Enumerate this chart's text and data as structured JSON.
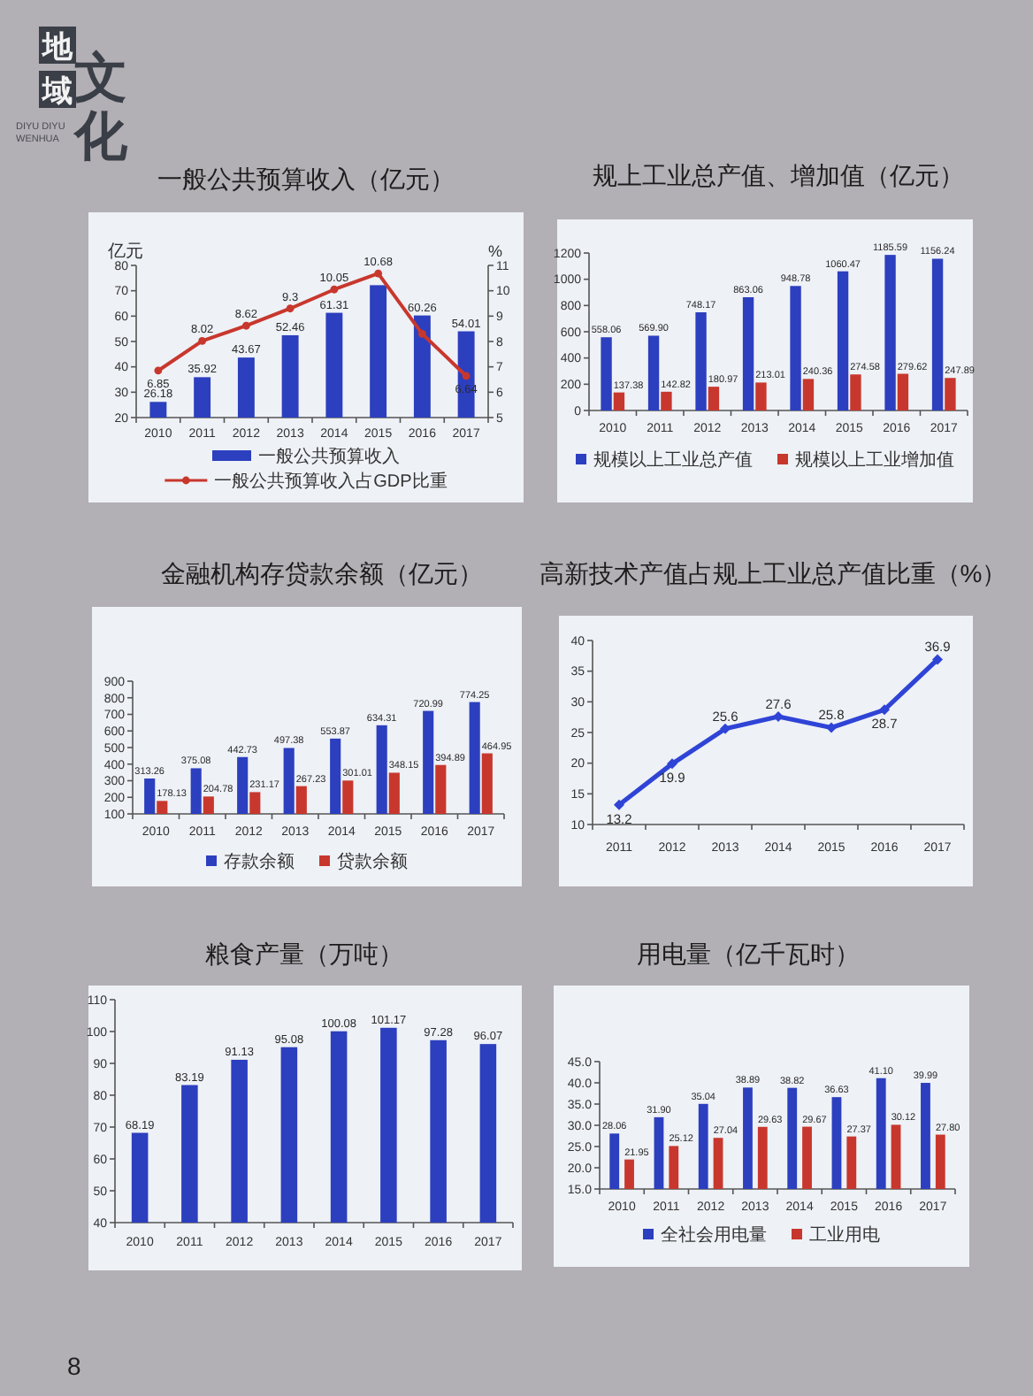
{
  "chart_data": [
    {
      "type": "other",
      "annotations": [
        "地域",
        "文化",
        "DIYU DIYU WENHUA",
        "8"
      ]
    },
    {
      "type": "bar",
      "title": "一般公共预算收入（亿元）",
      "ylabel": "亿元",
      "y2label": "%",
      "categories": [
        "2010",
        "2011",
        "2012",
        "2013",
        "2014",
        "2015",
        "2016",
        "2017"
      ],
      "series": [
        {
          "name": "一般公共预算收入",
          "color": "#2c3fbf",
          "values": [
            26.18,
            35.92,
            43.67,
            52.46,
            61.31,
            72.2,
            60.26,
            54.01
          ],
          "value_labels": [
            "26.18",
            "35.92",
            "43.67",
            "52.46",
            "61.31",
            null,
            "60.26",
            "54.01"
          ]
        },
        {
          "name": "一般公共预算收入占GDP比重",
          "type": "line",
          "axis": "y2",
          "color": "#c8372d",
          "values": [
            6.85,
            8.02,
            8.62,
            9.3,
            10.05,
            10.68,
            8.3,
            6.64
          ],
          "value_labels": [
            "6.85",
            "8.02",
            "8.62",
            "9.3",
            "10.05",
            "10.68",
            null,
            "6.64"
          ]
        }
      ],
      "ylim": [
        20,
        80
      ],
      "yticks": [
        20,
        30,
        40,
        50,
        60,
        70,
        80
      ],
      "y2lim": [
        5,
        11
      ],
      "y2ticks": [
        5,
        6,
        7,
        8,
        9,
        10,
        11
      ],
      "marker": "circle",
      "line_style": "solid",
      "legend": "bottom"
    },
    {
      "type": "bar",
      "title": "规上工业总产值、增加值（亿元）",
      "categories": [
        "2010",
        "2011",
        "2012",
        "2013",
        "2014",
        "2015",
        "2016",
        "2017"
      ],
      "series": [
        {
          "name": "规模以上工业总产值",
          "color": "#2c3fbf",
          "values": [
            558.06,
            569.9,
            748.17,
            863.06,
            948.78,
            1060.47,
            1185.59,
            1156.24
          ],
          "value_labels": [
            "558.06",
            "569.90",
            "748.17",
            "863.06",
            "948.78",
            "1060.47",
            "1185.59",
            "1156.24"
          ]
        },
        {
          "name": "规模以上工业增加值",
          "color": "#c8372d",
          "values": [
            137.38,
            142.82,
            180.97,
            213.01,
            240.36,
            274.58,
            279.62,
            247.89
          ],
          "value_labels": [
            "137.38",
            "142.82",
            "180.97",
            "213.01",
            "240.36",
            "274.58",
            "279.62",
            "247.89"
          ]
        }
      ],
      "ylim": [
        0,
        1200
      ],
      "yticks": [
        0,
        200,
        400,
        600,
        800,
        1000,
        1200
      ],
      "legend": "bottom"
    },
    {
      "type": "bar",
      "title": "金融机构存贷款余额（亿元）",
      "categories": [
        "2010",
        "2011",
        "2012",
        "2013",
        "2014",
        "2015",
        "2016",
        "2017"
      ],
      "series": [
        {
          "name": "存款余额",
          "color": "#2c3fbf",
          "values": [
            313.26,
            375.08,
            442.73,
            497.38,
            553.87,
            634.31,
            720.99,
            774.25
          ],
          "value_labels": [
            "313.26",
            "375.08",
            "442.73",
            "497.38",
            "553.87",
            "634.31",
            "720.99",
            "774.25"
          ]
        },
        {
          "name": "贷款余额",
          "color": "#c8372d",
          "values": [
            178.13,
            204.78,
            231.17,
            267.23,
            301.01,
            348.15,
            394.89,
            464.95
          ],
          "value_labels": [
            "178.13",
            "204.78",
            "231.17",
            "267.23",
            "301.01",
            "348.15",
            "394.89",
            "464.95"
          ]
        }
      ],
      "ylim": [
        100,
        900
      ],
      "yticks": [
        100,
        200,
        300,
        400,
        500,
        600,
        700,
        800,
        900
      ],
      "legend": "bottom"
    },
    {
      "type": "line",
      "title": "高新技术产值占规上工业总产值比重（%）",
      "categories": [
        "2011",
        "2012",
        "2013",
        "2014",
        "2015",
        "2016",
        "2017"
      ],
      "series": [
        {
          "color": "#2f44d6",
          "values": [
            13.2,
            19.9,
            25.6,
            27.6,
            25.8,
            28.7,
            36.9
          ],
          "value_labels": [
            "13.2",
            "19.9",
            "25.6",
            "27.6",
            "25.8",
            "28.7",
            "36.9"
          ]
        }
      ],
      "ylim": [
        10,
        40
      ],
      "yticks": [
        10,
        15,
        20,
        25,
        30,
        35,
        40
      ],
      "marker": "diamond",
      "line_style": "solid"
    },
    {
      "type": "bar",
      "title": "粮食产量（万吨）",
      "categories": [
        "2010",
        "2011",
        "2012",
        "2013",
        "2014",
        "2015",
        "2016",
        "2017"
      ],
      "series": [
        {
          "color": "#2c3fbf",
          "values": [
            68.19,
            83.19,
            91.13,
            95.08,
            100.08,
            101.17,
            97.28,
            96.07
          ],
          "value_labels": [
            "68.19",
            "83.19",
            "91.13",
            "95.08",
            "100.08",
            "101.17",
            "97.28",
            "96.07"
          ]
        }
      ],
      "ylim": [
        40,
        110
      ],
      "yticks": [
        40,
        50,
        60,
        70,
        80,
        90,
        100,
        110
      ]
    },
    {
      "type": "bar",
      "title": "用电量（亿千瓦时）",
      "categories": [
        "2010",
        "2011",
        "2012",
        "2013",
        "2014",
        "2015",
        "2016",
        "2017"
      ],
      "series": [
        {
          "name": "全社会用电量",
          "color": "#2c3fbf",
          "values": [
            28.06,
            31.9,
            35.04,
            38.89,
            38.82,
            36.63,
            41.1,
            39.99
          ],
          "value_labels": [
            "28.06",
            "31.90",
            "35.04",
            "38.89",
            "38.82",
            "36.63",
            "41.10",
            "39.99"
          ]
        },
        {
          "name": "工业用电",
          "color": "#c8372d",
          "values": [
            21.95,
            25.12,
            27.04,
            29.63,
            29.67,
            27.37,
            30.12,
            27.8
          ],
          "value_labels": [
            "21.95",
            "25.12",
            "27.04",
            "29.63",
            "29.67",
            "27.37",
            "30.12",
            "27.80"
          ]
        }
      ],
      "ylim": [
        15,
        45
      ],
      "yticks": [
        {
          "value": 15,
          "label": "15.0"
        },
        {
          "value": 20,
          "label": "20.0"
        },
        {
          "value": 25,
          "label": "25.0"
        },
        {
          "value": 30,
          "label": "30.0"
        },
        {
          "value": 35,
          "label": "35.0"
        },
        {
          "value": 40,
          "label": "40.0"
        },
        {
          "value": 45,
          "label": "45.0"
        }
      ],
      "legend": "bottom"
    }
  ]
}
